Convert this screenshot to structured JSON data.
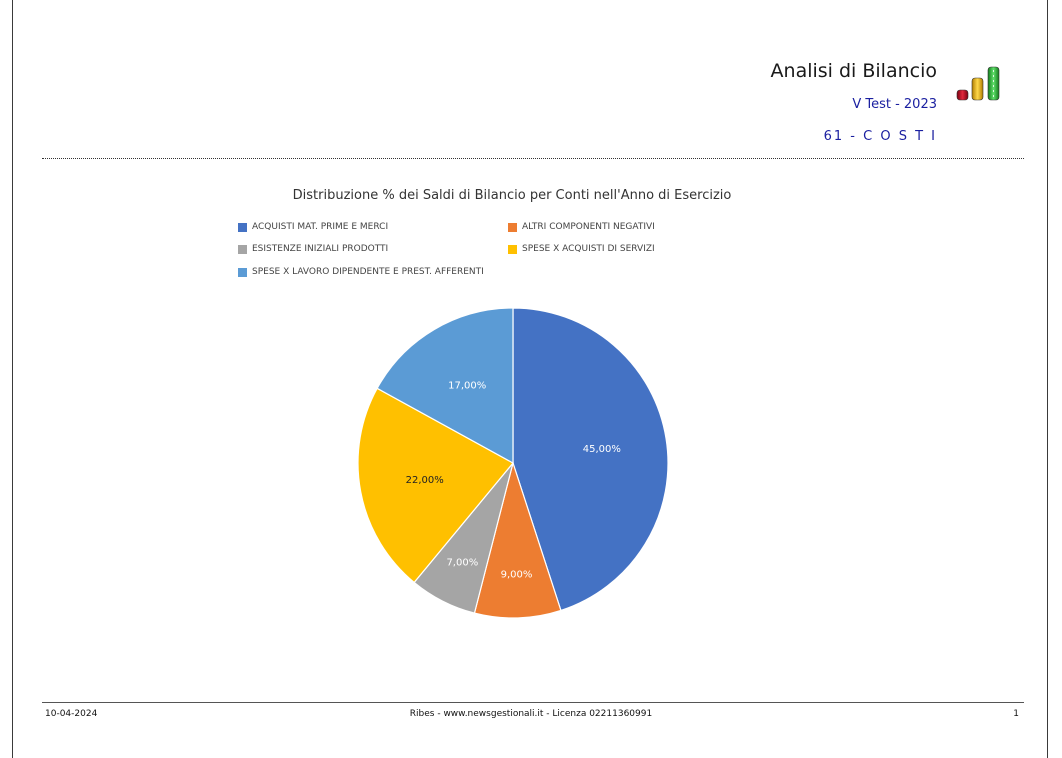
{
  "header": {
    "title": "Analisi di Bilancio",
    "subtitle": "V Test - 2023",
    "section": "61 - C O S T I"
  },
  "logo": {
    "icon": "bar-chart-logo-icon",
    "colors": [
      "#c8102e",
      "#f2b705",
      "#2fbf3a"
    ]
  },
  "chart_data": {
    "type": "pie",
    "title": "Distribuzione % dei Saldi di Bilancio per Conti nell'Anno di Esercizio",
    "legend_position": "top",
    "categories": [
      "ACQUISTI MAT. PRIME E MERCI",
      "ALTRI COMPONENTI NEGATIVI",
      "ESISTENZE INIZIALI PRODOTTI",
      "SPESE X ACQUISTI DI SERVIZI",
      "SPESE X LAVORO DIPENDENTE E PREST. AFFERENTI"
    ],
    "values": [
      45,
      9,
      7,
      22,
      17
    ],
    "labels": [
      "45,00%",
      "9,00%",
      "7,00%",
      "22,00%",
      "17,00%"
    ],
    "colors": [
      "#4472c4",
      "#ed7d31",
      "#a5a5a5",
      "#ffc000",
      "#5b9bd5"
    ]
  },
  "footer": {
    "date": "10-04-2024",
    "center": "Ribes - www.newsgestionali.it - Licenza 02211360991",
    "page": "1"
  }
}
